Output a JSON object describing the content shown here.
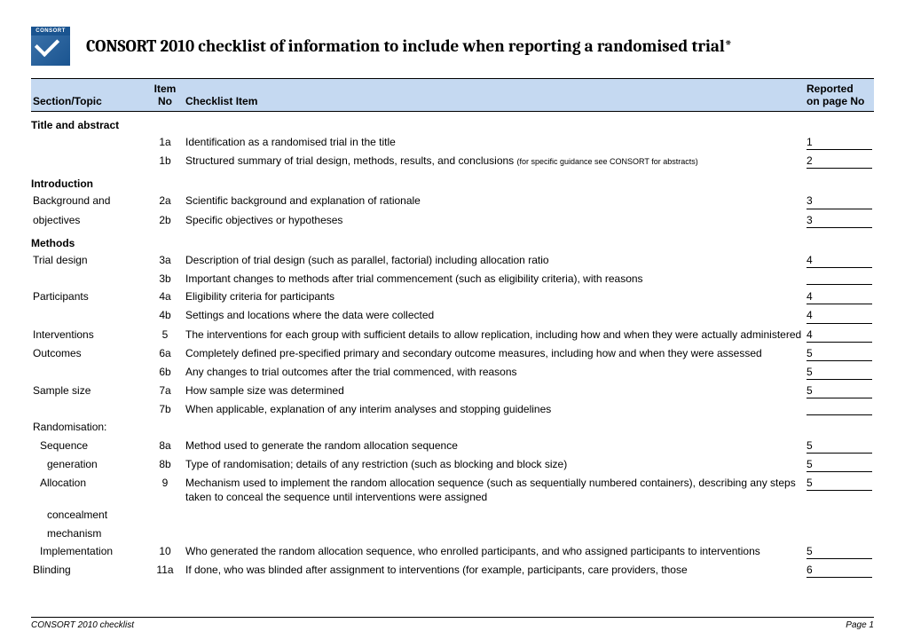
{
  "logo_text": "CONSORT",
  "title": "CONSORT 2010 checklist of information to include when reporting a randomised trial*",
  "headers": {
    "section": "Section/Topic",
    "item_no_l1": "Item",
    "item_no_l2": "No",
    "checklist": "Checklist Item",
    "reported_l1": "Reported",
    "reported_l2": "on page No"
  },
  "colors": {
    "header_bg": "#c5d9f1",
    "logo_bg": "#1a5490",
    "text": "#000000",
    "page_bg": "#ffffff"
  },
  "sections": [
    {
      "heading": "Title and abstract",
      "rows": [
        {
          "topic": "",
          "no": "1a",
          "text": "Identification as a randomised trial in the title",
          "note": "",
          "page": "1"
        },
        {
          "topic": "",
          "no": "1b",
          "text": "Structured summary of trial design, methods, results, and conclusions ",
          "note": "(for specific guidance see CONSORT for abstracts)",
          "page": "2"
        }
      ]
    },
    {
      "heading": "Introduction",
      "rows": [
        {
          "topic": "Background and",
          "no": "2a",
          "text": "Scientific background and explanation of rationale",
          "note": "",
          "page": "3"
        },
        {
          "topic": "objectives",
          "no": "2b",
          "text": "Specific objectives or hypotheses",
          "note": "",
          "page": "3"
        }
      ]
    },
    {
      "heading": "Methods",
      "rows": [
        {
          "topic": "Trial design",
          "no": "3a",
          "text": "Description of trial design (such as parallel, factorial) including allocation ratio",
          "note": "",
          "page": "4"
        },
        {
          "topic": "",
          "no": "3b",
          "text": "Important changes to methods after trial commencement (such as eligibility criteria), with reasons",
          "note": "",
          "page": ""
        },
        {
          "topic": "Participants",
          "no": "4a",
          "text": "Eligibility criteria for participants",
          "note": "",
          "page": "4"
        },
        {
          "topic": "",
          "no": "4b",
          "text": "Settings and locations where the data were collected",
          "note": "",
          "page": "4"
        },
        {
          "topic": "Interventions",
          "no": "5",
          "text": "The interventions for each group with sufficient details to allow replication, including how and when they were actually administered",
          "note": "",
          "page": "4"
        },
        {
          "topic": "Outcomes",
          "no": "6a",
          "text": "Completely defined pre-specified primary and secondary outcome measures, including how and when they were assessed",
          "note": "",
          "page": "5"
        },
        {
          "topic": "",
          "no": "6b",
          "text": "Any changes to trial outcomes after the trial commenced, with reasons",
          "note": "",
          "page": "5"
        },
        {
          "topic": "Sample size",
          "no": "7a",
          "text": "How sample size was determined",
          "note": "",
          "page": "5"
        },
        {
          "topic": "",
          "no": "7b",
          "text": "When applicable, explanation of any interim analyses and stopping guidelines",
          "note": "",
          "page": ""
        },
        {
          "topic": "Randomisation:",
          "no": "",
          "text": "",
          "note": "",
          "page": null
        },
        {
          "topic": "Sequence",
          "indent": 1,
          "no": "8a",
          "text": "Method used to generate the random allocation sequence",
          "note": "",
          "page": "5"
        },
        {
          "topic": "generation",
          "indent": 2,
          "no": "8b",
          "text": "Type of randomisation; details of any restriction (such as blocking and block size)",
          "note": "",
          "page": "5"
        },
        {
          "topic": "Allocation",
          "indent": 1,
          "no": "9",
          "text": "Mechanism used to implement the random allocation sequence (such as sequentially numbered containers), describing any steps taken to conceal the sequence until interventions were assigned",
          "note": "",
          "page": "5"
        },
        {
          "topic": "concealment",
          "indent": 2,
          "no": "",
          "text": "",
          "note": "",
          "page": null
        },
        {
          "topic": "mechanism",
          "indent": 2,
          "no": "",
          "text": "",
          "note": "",
          "page": null
        },
        {
          "topic": "Implementation",
          "indent": 1,
          "no": "10",
          "text": "Who generated the random allocation sequence, who enrolled participants, and who assigned participants to interventions",
          "note": "",
          "page": "5"
        },
        {
          "topic": "Blinding",
          "no": "11a",
          "text": "If done, who was blinded after assignment to interventions (for example, participants, care providers, those",
          "note": "",
          "page": "6"
        }
      ]
    }
  ],
  "footer_left": "CONSORT 2010 checklist",
  "footer_right": "Page 1"
}
